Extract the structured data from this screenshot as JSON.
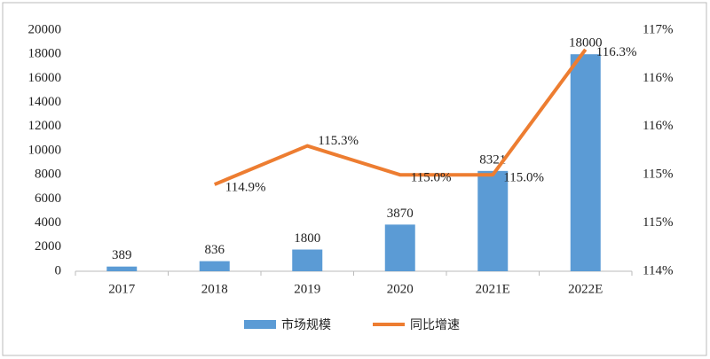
{
  "chart_data": {
    "type": "bar_line",
    "categories": [
      "2017",
      "2018",
      "2019",
      "2020",
      "2021E",
      "2022E"
    ],
    "series": [
      {
        "name": "市场规模",
        "color": "#5b9bd5",
        "type": "bar",
        "values": [
          389,
          836,
          1800,
          3870,
          8321,
          18000
        ]
      },
      {
        "name": "同比增速",
        "color": "#ed7d31",
        "type": "line",
        "axis": "y2",
        "values": [
          null,
          114.9,
          115.3,
          115.0,
          115.0,
          116.3
        ],
        "value_labels": [
          null,
          "114.9%",
          "115.3%",
          "115.0%",
          "115.0%",
          "116.3%"
        ]
      }
    ],
    "ylim": [
      0,
      20000
    ],
    "yticks": [
      0,
      2000,
      4000,
      6000,
      8000,
      10000,
      12000,
      14000,
      16000,
      18000,
      20000
    ],
    "y2lim": [
      114,
      116.5
    ],
    "y2ticks": [
      {
        "value": 114,
        "label": "114%"
      },
      {
        "value": 114.5,
        "label": "115%"
      },
      {
        "value": 115,
        "label": "115%"
      },
      {
        "value": 115.5,
        "label": "116%"
      },
      {
        "value": 116,
        "label": "116%"
      },
      {
        "value": 116.5,
        "label": "117%"
      }
    ]
  }
}
